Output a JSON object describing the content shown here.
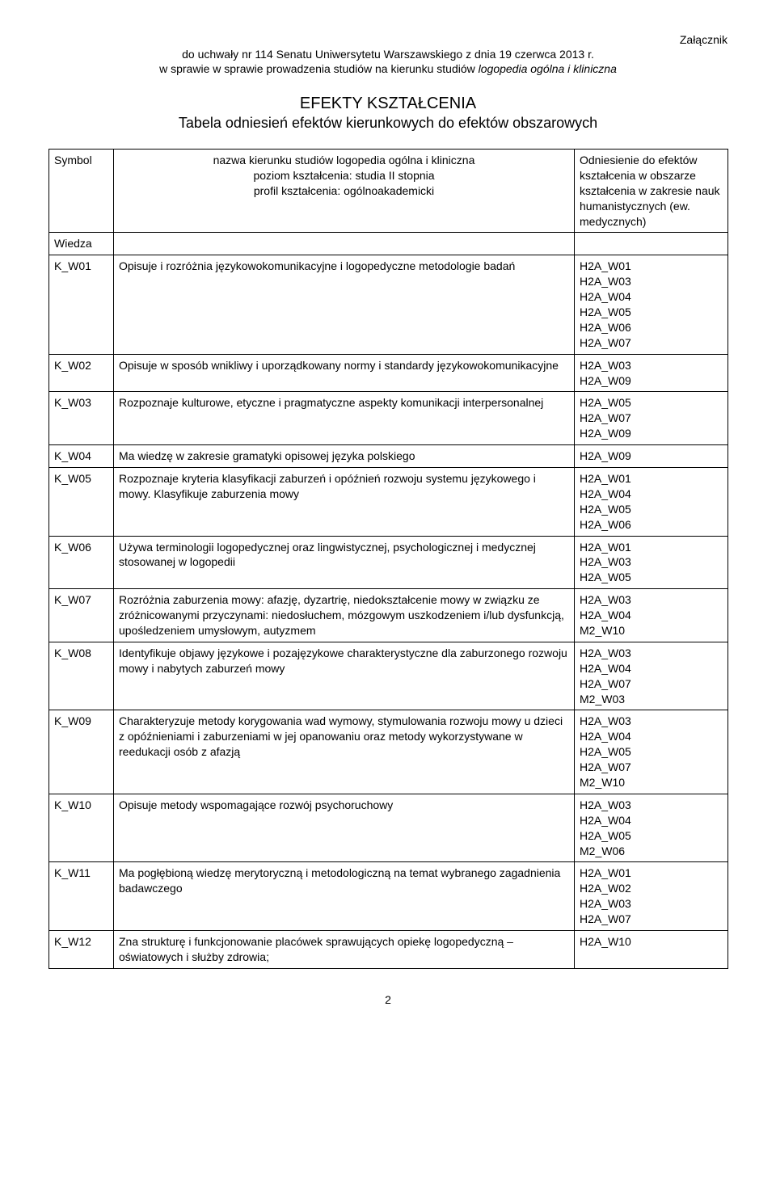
{
  "header": {
    "attachment": "Załącznik",
    "resolution": "do uchwały nr 114 Senatu Uniwersytetu Warszawskiego z dnia 19 czerwca 2013 r.",
    "subject_prefix": "w sprawie w sprawie prowadzenia studiów na kierunku studiów ",
    "subject_italic": "logopedia ogólna i kliniczna"
  },
  "title": {
    "main": "EFEKTY KSZTAŁCENIA",
    "sub": "Tabela odniesień efektów kierunkowych do efektów obszarowych"
  },
  "table_header": {
    "symbol": "Symbol",
    "middle_line1": "nazwa kierunku studiów logopedia ogólna i kliniczna",
    "middle_line2": "poziom kształcenia: studia II stopnia",
    "middle_line3": "profil kształcenia: ogólnoakademicki",
    "right": "Odniesienie do efektów kształcenia w obszarze kształcenia w zakresie nauk humanistycznych (ew. medycznych)"
  },
  "section_label": "Wiedza",
  "rows": [
    {
      "sym": "K_W01",
      "desc": "Opisuje i rozróżnia językowokomunikacyjne i logopedyczne metodologie badań",
      "codes": "H2A_W01\nH2A_W03\nH2A_W04\nH2A_W05\nH2A_W06\nH2A_W07"
    },
    {
      "sym": "K_W02",
      "desc": "Opisuje w sposób wnikliwy i uporządkowany normy i standardy językowokomunikacyjne",
      "codes": "H2A_W03\nH2A_W09"
    },
    {
      "sym": "K_W03",
      "desc": "Rozpoznaje kulturowe, etyczne i pragmatyczne aspekty komunikacji interpersonalnej",
      "codes": "H2A_W05\nH2A_W07\nH2A_W09"
    },
    {
      "sym": "K_W04",
      "desc": "Ma wiedzę w zakresie gramatyki opisowej języka polskiego",
      "codes": "H2A_W09"
    },
    {
      "sym": "K_W05",
      "desc": "Rozpoznaje kryteria klasyfikacji zaburzeń i opóźnień rozwoju systemu językowego i mowy. Klasyfikuje zaburzenia mowy",
      "codes": "H2A_W01\nH2A_W04\nH2A_W05\nH2A_W06"
    },
    {
      "sym": "K_W06",
      "desc": "Używa terminologii logopedycznej oraz lingwistycznej, psychologicznej i medycznej stosowanej w logopedii",
      "codes": "H2A_W01\nH2A_W03\nH2A_W05"
    },
    {
      "sym": "K_W07",
      "desc": "Rozróżnia zaburzenia mowy: afazję, dyzartrię, niedokształcenie mowy w związku ze zróżnicowanymi przyczynami: niedosłuchem, mózgowym uszkodzeniem i/lub dysfunkcją, upośledzeniem umysłowym, autyzmem",
      "codes": "H2A_W03\nH2A_W04\nM2_W10"
    },
    {
      "sym": "K_W08",
      "desc": "Identyfikuje objawy językowe i pozajęzykowe charakterystyczne dla zaburzonego rozwoju mowy i nabytych zaburzeń mowy",
      "codes": "H2A_W03\nH2A_W04\nH2A_W07\nM2_W03"
    },
    {
      "sym": "K_W09",
      "desc": "Charakteryzuje metody korygowania wad wymowy, stymulowania rozwoju mowy u dzieci z opóźnieniami i zaburzeniami w jej opanowaniu oraz metody wykorzystywane w reedukacji osób z afazją",
      "codes": "H2A_W03\nH2A_W04\nH2A_W05\nH2A_W07\nM2_W10"
    },
    {
      "sym": "K_W10",
      "desc": "Opisuje metody wspomagające rozwój psychoruchowy",
      "codes": "H2A_W03\nH2A_W04\nH2A_W05\nM2_W06"
    },
    {
      "sym": "K_W11",
      "desc": "Ma pogłębioną wiedzę merytoryczną i metodologiczną na temat wybranego zagadnienia badawczego",
      "codes": "H2A_W01\nH2A_W02\nH2A_W03\nH2A_W07"
    },
    {
      "sym": "K_W12",
      "desc": "Zna strukturę i funkcjonowanie placówek sprawujących opiekę logopedyczną – oświatowych i służby zdrowia;",
      "codes": "H2A_W10"
    }
  ],
  "page_number": "2"
}
